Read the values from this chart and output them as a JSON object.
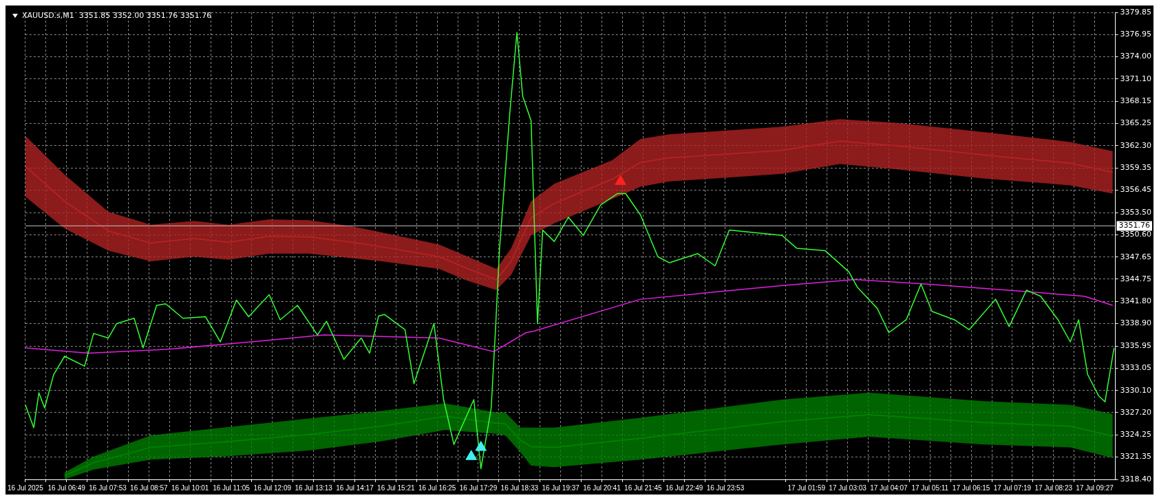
{
  "chart_data": {
    "type": "line",
    "title": "XAUUSD.s,M1  3351.85 3352.00 3351.76 3351.76",
    "grid": true,
    "legend": false,
    "line_style": "solid",
    "marker": "none",
    "xlim": [
      "2025-07-16T05:45",
      "2025-07-17T09:59"
    ],
    "xticks": [
      {
        "value": "2025-07-16T05:45",
        "label": "16 Jul 2025"
      },
      {
        "value": "2025-07-16T06:17",
        "label": null
      },
      {
        "value": "2025-07-16T06:49",
        "label": "16 Jul 06:49"
      },
      {
        "value": "2025-07-16T07:21",
        "label": null
      },
      {
        "value": "2025-07-16T07:53",
        "label": "16 Jul 07:53"
      },
      {
        "value": "2025-07-16T08:25",
        "label": null
      },
      {
        "value": "2025-07-16T08:57",
        "label": "16 Jul 08:57"
      },
      {
        "value": "2025-07-16T09:29",
        "label": null
      },
      {
        "value": "2025-07-16T10:01",
        "label": "16 Jul 10:01"
      },
      {
        "value": "2025-07-16T10:33",
        "label": null
      },
      {
        "value": "2025-07-16T11:05",
        "label": "16 Jul 11:05"
      },
      {
        "value": "2025-07-16T11:37",
        "label": null
      },
      {
        "value": "2025-07-16T12:09",
        "label": "16 Jul 12:09"
      },
      {
        "value": "2025-07-16T12:41",
        "label": null
      },
      {
        "value": "2025-07-16T13:13",
        "label": "16 Jul 13:13"
      },
      {
        "value": "2025-07-16T13:45",
        "label": null
      },
      {
        "value": "2025-07-16T14:17",
        "label": "16 Jul 14:17"
      },
      {
        "value": "2025-07-16T14:49",
        "label": null
      },
      {
        "value": "2025-07-16T15:21",
        "label": "16 Jul 15:21"
      },
      {
        "value": "2025-07-16T15:53",
        "label": null
      },
      {
        "value": "2025-07-16T16:25",
        "label": "16 Jul 16:25"
      },
      {
        "value": "2025-07-16T16:57",
        "label": null
      },
      {
        "value": "2025-07-16T17:29",
        "label": "16 Jul 17:29"
      },
      {
        "value": "2025-07-16T18:01",
        "label": null
      },
      {
        "value": "2025-07-16T18:33",
        "label": "16 Jul 18:33"
      },
      {
        "value": "2025-07-16T19:05",
        "label": null
      },
      {
        "value": "2025-07-16T19:37",
        "label": "16 Jul 19:37"
      },
      {
        "value": "2025-07-16T20:09",
        "label": null
      },
      {
        "value": "2025-07-16T20:41",
        "label": "16 Jul 20:41"
      },
      {
        "value": "2025-07-16T21:13",
        "label": null
      },
      {
        "value": "2025-07-16T21:45",
        "label": "16 Jul 21:45"
      },
      {
        "value": "2025-07-16T22:17",
        "label": null
      },
      {
        "value": "2025-07-16T22:49",
        "label": "16 Jul 22:49"
      },
      {
        "value": "2025-07-16T23:21",
        "label": null
      },
      {
        "value": "2025-07-16T23:53",
        "label": "16 Jul 23:53"
      },
      {
        "value": "2025-07-17T01:27",
        "label": null
      },
      {
        "value": "2025-07-17T01:59",
        "label": "17 Jul 01:59"
      },
      {
        "value": "2025-07-17T02:31",
        "label": null
      },
      {
        "value": "2025-07-17T03:03",
        "label": "17 Jul 03:03"
      },
      {
        "value": "2025-07-17T03:35",
        "label": null
      },
      {
        "value": "2025-07-17T04:07",
        "label": "17 Jul 04:07"
      },
      {
        "value": "2025-07-17T04:39",
        "label": null
      },
      {
        "value": "2025-07-17T05:11",
        "label": "17 Jul 05:11"
      },
      {
        "value": "2025-07-17T05:43",
        "label": null
      },
      {
        "value": "2025-07-17T06:15",
        "label": "17 Jul 06:15"
      },
      {
        "value": "2025-07-17T06:47",
        "label": null
      },
      {
        "value": "2025-07-17T07:19",
        "label": "17 Jul 07:19"
      },
      {
        "value": "2025-07-17T07:51",
        "label": null
      },
      {
        "value": "2025-07-17T08:23",
        "label": "17 Jul 08:23"
      },
      {
        "value": "2025-07-17T08:55",
        "label": null
      },
      {
        "value": "2025-07-17T09:27",
        "label": "17 Jul 09:27"
      }
    ],
    "ylim": [
      3318.4,
      3379.85
    ],
    "yticks": [
      {
        "value": 3318.4,
        "label": "3318.40"
      },
      3321.35,
      3324.25,
      {
        "value": 3327.2,
        "label": "3327.20"
      },
      {
        "value": 3330.1,
        "label": "3330.10"
      },
      3333.05,
      3335.95,
      {
        "value": 3338.9,
        "label": "3338.90"
      },
      {
        "value": 3341.8,
        "label": "3341.80"
      },
      3344.75,
      3347.65,
      {
        "value": 3350.6,
        "label": "3350.60"
      },
      {
        "value": 3353.5,
        "label": "3353.50"
      },
      3356.45,
      3359.35,
      {
        "value": 3362.3,
        "label": "3362.30"
      },
      3365.25,
      3368.15,
      {
        "value": 3371.1,
        "label": "3371.10"
      },
      {
        "value": 3374,
        "label": "3374.00"
      },
      3376.95,
      3379.85
    ],
    "ref_lines": [
      {
        "axis": "y",
        "value": 3351.76,
        "label": "3351.76",
        "color": "#c0c0c0"
      }
    ],
    "series": [
      {
        "color": "#b22222",
        "x": [
          "2025-07-16T05:45",
          "2025-07-16T06:46",
          "2025-07-16T07:54",
          "2025-07-16T09:00",
          "2025-07-16T10:07",
          "2025-07-16T11:01",
          "2025-07-16T12:04",
          "2025-07-16T13:06",
          "2025-07-16T14:13",
          "2025-07-16T14:59",
          "2025-07-16T16:28",
          "2025-07-16T17:13",
          "2025-07-16T17:57",
          "2025-07-16T18:20",
          "2025-07-16T18:51",
          "2025-07-16T19:27",
          "2025-07-16T20:57",
          "2025-07-16T21:41",
          "2025-07-16T22:26",
          "2025-07-17T01:21",
          "2025-07-17T02:51",
          "2025-07-17T04:20",
          "2025-07-17T06:34",
          "2025-07-17T08:49",
          "2025-07-17T09:55"
        ],
        "values": [
          3359.6,
          3355.0,
          3351.1,
          3349.5,
          3350.1,
          3349.6,
          3350.4,
          3350.3,
          3349.6,
          3349.0,
          3347.7,
          3346.1,
          3344.7,
          3347.1,
          3352.8,
          3354.7,
          3357.9,
          3360.1,
          3360.7,
          3361.7,
          3362.9,
          3362.3,
          3361.1,
          3360.0,
          3358.8
        ],
        "lower": [
          3355.6,
          3351.4,
          3348.5,
          3347.1,
          3347.7,
          3347.3,
          3348.1,
          3348.1,
          3347.5,
          3347.1,
          3346.1,
          3344.5,
          3343.3,
          3345.3,
          3350.5,
          3352.1,
          3355.3,
          3356.9,
          3357.6,
          3358.6,
          3359.9,
          3359.2,
          3358.0,
          3357.1,
          3356.0
        ],
        "upper": [
          3363.6,
          3358.5,
          3353.6,
          3351.9,
          3352.4,
          3351.9,
          3352.6,
          3352.5,
          3351.7,
          3350.9,
          3349.3,
          3347.7,
          3346.1,
          3348.8,
          3355.0,
          3357.3,
          3360.4,
          3363.2,
          3363.8,
          3364.8,
          3365.8,
          3365.3,
          3364.1,
          3362.8,
          3361.6
        ]
      },
      {
        "color": "#008000",
        "x": [
          "2025-07-16T06:46",
          "2025-07-16T07:31",
          "2025-07-16T09:00",
          "2025-07-16T10:52",
          "2025-07-16T13:06",
          "2025-07-16T14:58",
          "2025-07-16T16:37",
          "2025-07-16T17:57",
          "2025-07-16T18:11",
          "2025-07-16T18:34",
          "2025-07-16T18:51",
          "2025-07-16T19:27",
          "2025-07-16T21:41",
          "2025-07-17T01:21",
          "2025-07-17T03:36",
          "2025-07-17T06:34",
          "2025-07-17T08:49",
          "2025-07-17T09:55"
        ],
        "values": [
          3318.9,
          3320.6,
          3322.6,
          3323.3,
          3324.3,
          3325.4,
          3326.7,
          3325.8,
          3325.7,
          3323.6,
          3322.7,
          3322.6,
          3323.8,
          3326.0,
          3326.9,
          3325.9,
          3325.4,
          3324.1
        ],
        "lower": [
          3318.4,
          3319.7,
          3321.0,
          3321.4,
          3322.2,
          3323.4,
          3324.9,
          3324.4,
          3324.2,
          3322.0,
          3320.2,
          3320.0,
          3321.0,
          3323.0,
          3324.0,
          3323.0,
          3322.6,
          3321.2
        ],
        "upper": [
          3319.3,
          3321.4,
          3324.2,
          3325.2,
          3326.4,
          3327.4,
          3328.4,
          3327.2,
          3327.2,
          3325.2,
          3325.2,
          3325.2,
          3326.5,
          3328.9,
          3329.8,
          3328.7,
          3328.2,
          3327.0
        ]
      },
      {
        "color": "#e020e0",
        "x": [
          "2025-07-16T05:45",
          "2025-07-16T07:23",
          "2025-07-16T09:23",
          "2025-07-16T11:37",
          "2025-07-16T13:29",
          "2025-07-16T14:59",
          "2025-07-16T16:28",
          "2025-07-16T17:53",
          "2025-07-16T18:43",
          "2025-07-16T18:55",
          "2025-07-16T21:41",
          "2025-07-17T01:21",
          "2025-07-17T03:14",
          "2025-07-17T05:05",
          "2025-07-17T07:41",
          "2025-07-17T09:11",
          "2025-07-17T09:55"
        ],
        "values": [
          3335.7,
          3335.0,
          3335.5,
          3336.5,
          3337.4,
          3337.2,
          3337.0,
          3335.2,
          3337.7,
          3337.9,
          3342.1,
          3343.9,
          3344.7,
          3344.1,
          3343.1,
          3342.5,
          3341.3
        ]
      },
      {
        "color": "#33ff33",
        "x": [
          "2025-07-16T05:45",
          "2025-07-16T05:58",
          "2025-07-16T06:06",
          "2025-07-16T06:15",
          "2025-07-16T06:29",
          "2025-07-16T06:46",
          "2025-07-16T07:17",
          "2025-07-16T07:31",
          "2025-07-16T07:54",
          "2025-07-16T08:07",
          "2025-07-16T08:34",
          "2025-07-16T08:48",
          "2025-07-16T09:09",
          "2025-07-16T09:23",
          "2025-07-16T09:50",
          "2025-07-16T10:25",
          "2025-07-16T10:48",
          "2025-07-16T11:13",
          "2025-07-16T11:32",
          "2025-07-16T12:04",
          "2025-07-16T12:21",
          "2025-07-16T12:48",
          "2025-07-16T13:19",
          "2025-07-16T13:33",
          "2025-07-16T14:00",
          "2025-07-16T14:27",
          "2025-07-16T14:40",
          "2025-07-16T14:54",
          "2025-07-16T15:03",
          "2025-07-16T15:35",
          "2025-07-16T15:49",
          "2025-07-16T16:20",
          "2025-07-16T16:35",
          "2025-07-16T16:51",
          "2025-07-16T17:22",
          "2025-07-16T17:33",
          "2025-07-16T17:49",
          "2025-07-16T17:55",
          "2025-07-16T18:02",
          "2025-07-16T18:18",
          "2025-07-16T18:29",
          "2025-07-16T18:38",
          "2025-07-16T18:51",
          "2025-07-16T19:01",
          "2025-07-16T19:09",
          "2025-07-16T19:27",
          "2025-07-16T19:49",
          "2025-07-16T20:12",
          "2025-07-16T20:39",
          "2025-07-16T21:05",
          "2025-07-16T21:18",
          "2025-07-16T21:41",
          "2025-07-16T22:08",
          "2025-07-16T22:26",
          "2025-07-16T23:10",
          "2025-07-16T23:37",
          "2025-07-16T23:59",
          "2025-07-17T01:21",
          "2025-07-17T01:44",
          "2025-07-17T02:28",
          "2025-07-17T03:05",
          "2025-07-17T03:18",
          "2025-07-17T03:49",
          "2025-07-17T04:07",
          "2025-07-17T04:34",
          "2025-07-17T04:57",
          "2025-07-17T05:14",
          "2025-07-17T05:49",
          "2025-07-17T06:12",
          "2025-07-17T06:53",
          "2025-07-17T07:14",
          "2025-07-17T07:41",
          "2025-07-17T08:03",
          "2025-07-17T08:30",
          "2025-07-17T08:49",
          "2025-07-17T09:02",
          "2025-07-17T09:16",
          "2025-07-17T09:33",
          "2025-07-17T09:43",
          "2025-07-17T09:57"
        ],
        "values": [
          3328.2,
          3325.2,
          3329.8,
          3327.8,
          3332.2,
          3334.6,
          3333.3,
          3337.6,
          3337.0,
          3338.9,
          3339.6,
          3335.7,
          3341.3,
          3341.5,
          3339.6,
          3339.8,
          3336.5,
          3342.0,
          3339.8,
          3342.7,
          3339.4,
          3341.3,
          3337.4,
          3339.2,
          3334.2,
          3337.0,
          3335.0,
          3339.9,
          3340.1,
          3338.1,
          3331.0,
          3338.9,
          3328.9,
          3323.0,
          3328.9,
          3319.8,
          3327.8,
          3337.0,
          3348.8,
          3366.7,
          3377.2,
          3368.8,
          3365.6,
          3338.9,
          3351.2,
          3349.7,
          3352.9,
          3350.5,
          3354.5,
          3356.0,
          3356.0,
          3353.2,
          3347.7,
          3346.9,
          3348.1,
          3346.5,
          3351.2,
          3350.5,
          3348.8,
          3348.5,
          3345.7,
          3343.7,
          3340.9,
          3337.7,
          3339.4,
          3344.1,
          3340.5,
          3339.4,
          3338.1,
          3342.1,
          3338.5,
          3343.3,
          3342.5,
          3339.4,
          3336.5,
          3339.4,
          3332.2,
          3329.4,
          3328.6,
          3335.7
        ]
      },
      {
        "type": "scatter",
        "color": "#40f0f0",
        "marker": "triangle",
        "x": [
          "2025-07-16T17:18",
          "2025-07-16T17:33"
        ],
        "values": [
          3321.4,
          3322.6
        ]
      },
      {
        "type": "scatter",
        "color": "#ff2020",
        "marker": "triangle",
        "x": [
          "2025-07-16T21:10"
        ],
        "values": [
          3357.6
        ]
      }
    ]
  }
}
